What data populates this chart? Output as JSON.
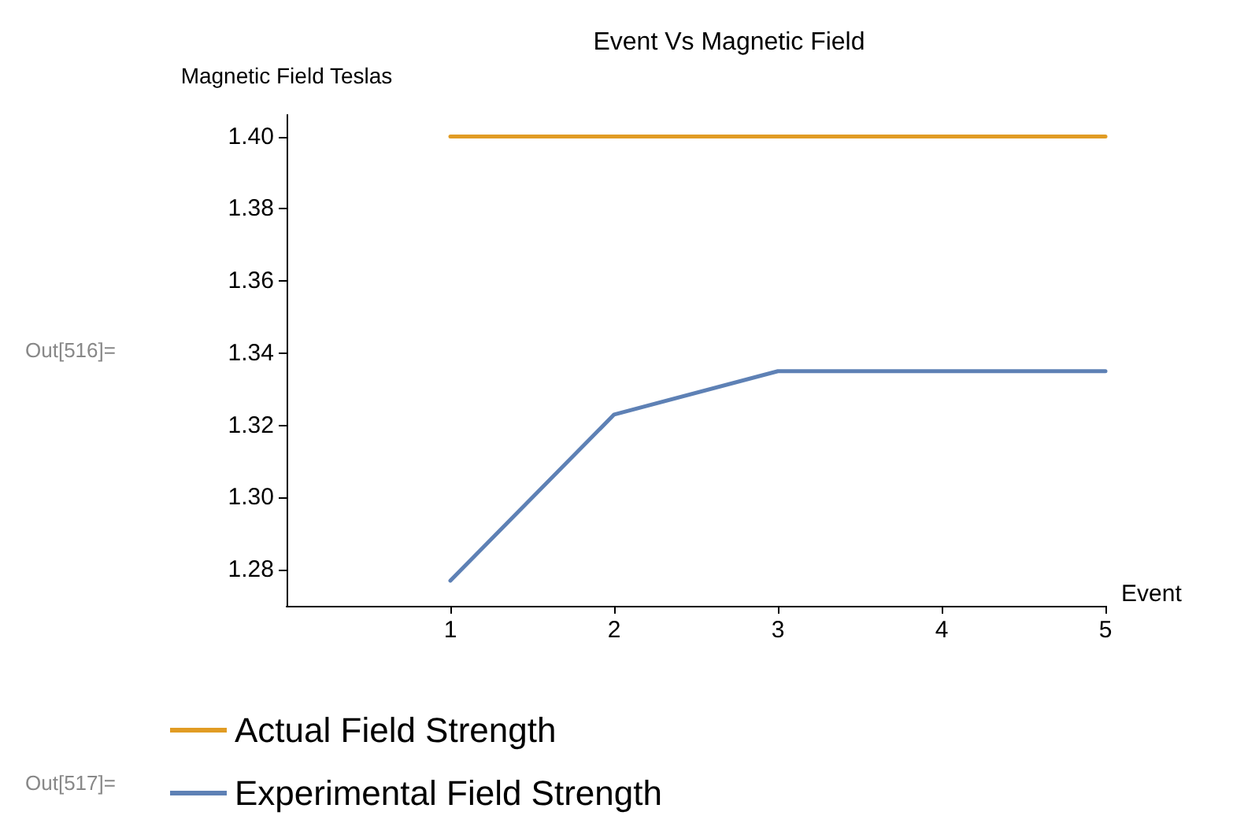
{
  "chart_data": {
    "type": "line",
    "title": "Event Vs Magnetic Field",
    "xlabel": "Event",
    "ylabel": "Magnetic Field Teslas",
    "x": [
      1,
      2,
      3,
      4,
      5
    ],
    "series": [
      {
        "name": "Actual Field Strength",
        "color": "#e19c24",
        "values": [
          1.4,
          1.4,
          1.4,
          1.4,
          1.4
        ]
      },
      {
        "name": "Experimental Field Strength",
        "color": "#5e81b5",
        "values": [
          1.277,
          1.323,
          1.335,
          1.335,
          1.335
        ]
      }
    ],
    "xlim": [
      0,
      5
    ],
    "xticks": [
      1,
      2,
      3,
      4,
      5
    ],
    "ylim": [
      1.27,
      1.406
    ],
    "yticks": [
      1.28,
      {
        "value": 1.3,
        "label": "1.30"
      },
      1.32,
      1.34,
      1.36,
      1.38,
      {
        "value": 1.4,
        "label": "1.40"
      }
    ],
    "grid": false,
    "legend": "bottom",
    "marker": "none",
    "line_style": "solid",
    "annotations": [
      "Out[516]=",
      "Out[517]="
    ]
  }
}
